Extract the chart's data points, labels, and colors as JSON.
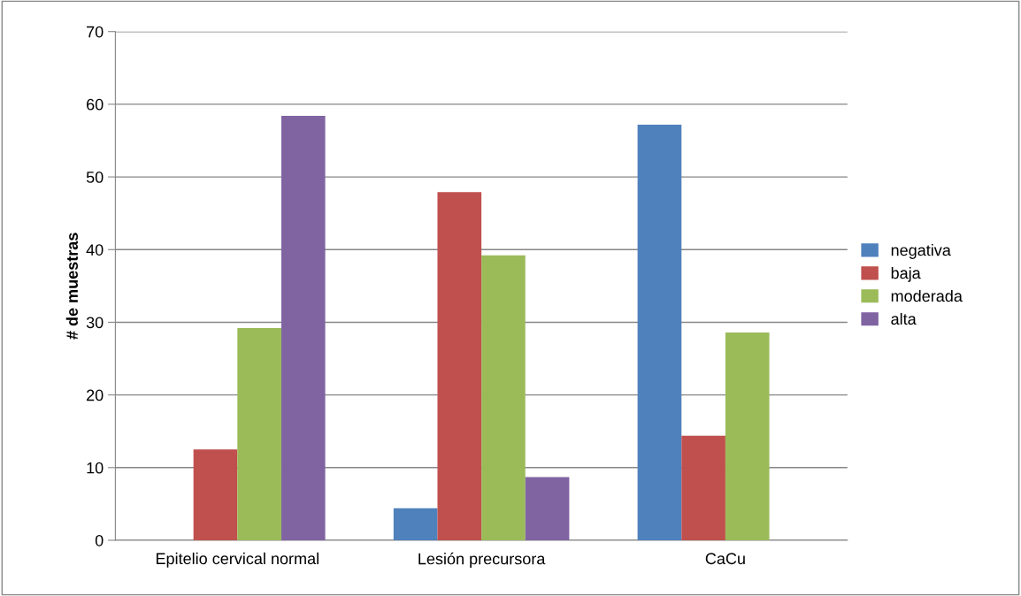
{
  "chart_data": {
    "type": "bar",
    "ylabel": "# de muestras",
    "categories": [
      "Epitelio cervical normal",
      "Lesión precursora",
      "CaCu"
    ],
    "series": [
      {
        "name": "negativa",
        "color": "#4f81bd",
        "values": [
          0,
          4.4,
          57.2
        ]
      },
      {
        "name": "baja",
        "color": "#c0504d",
        "values": [
          12.5,
          47.9,
          14.4
        ]
      },
      {
        "name": "moderada",
        "color": "#9bbb59",
        "values": [
          29.2,
          39.2,
          28.6
        ]
      },
      {
        "name": "alta",
        "color": "#8064a2",
        "values": [
          58.4,
          8.7,
          0
        ]
      }
    ],
    "ylim": [
      0,
      70
    ],
    "yticks": [
      0,
      10,
      20,
      30,
      40,
      50,
      60,
      70
    ],
    "grid": "y",
    "legend": "right"
  }
}
